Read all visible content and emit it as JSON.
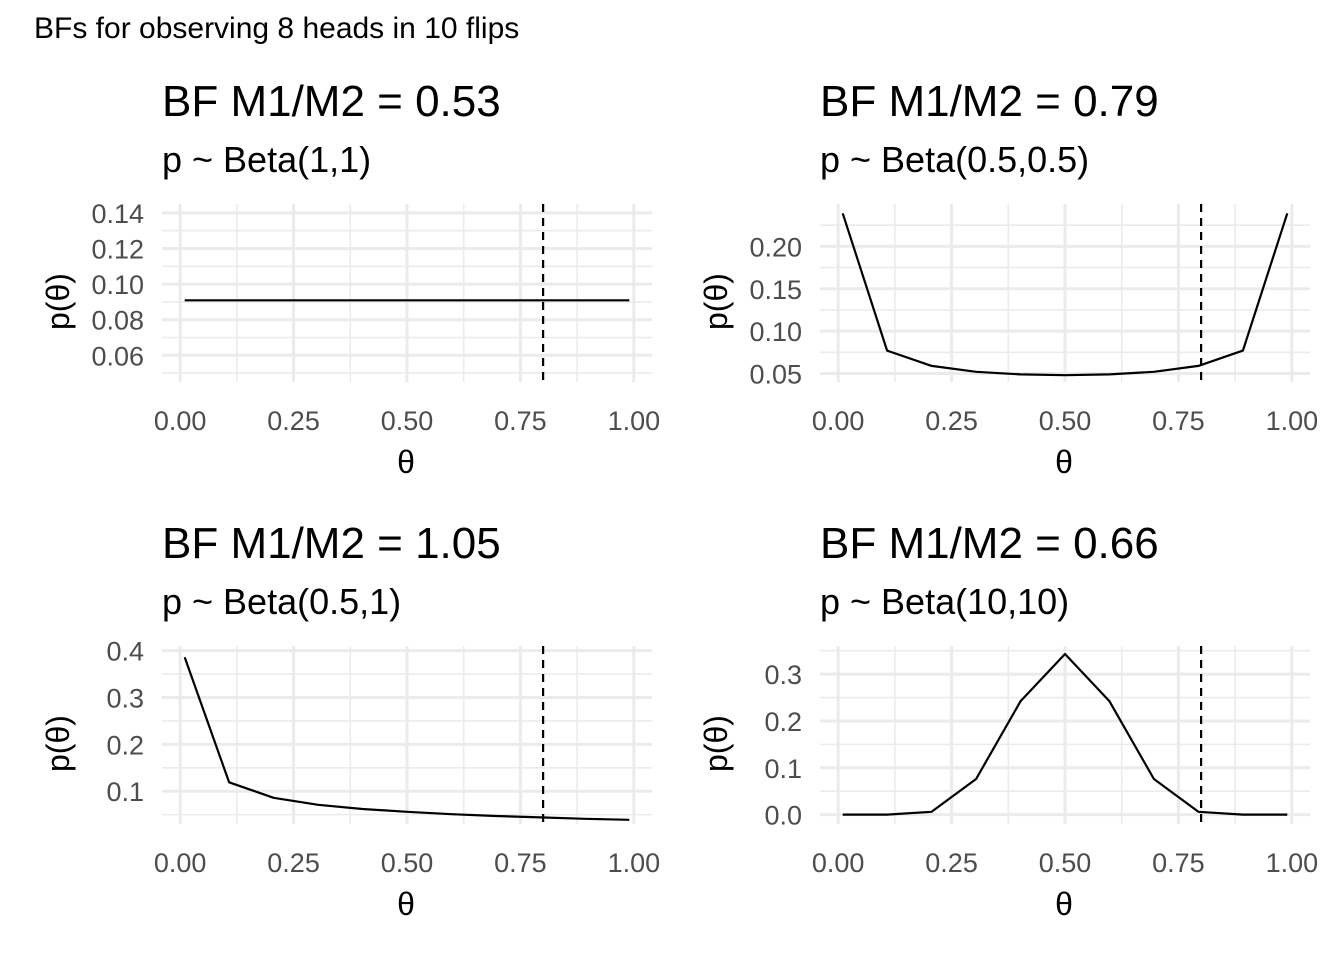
{
  "caption": "BFs for observing 8 heads in 10 flips",
  "chart_data": [
    {
      "type": "line",
      "title": "BF M1/M2 = 0.53",
      "subtitle": "p ~ Beta(1,1)",
      "xlabel": "θ",
      "ylabel": "p(θ)",
      "xlim": [
        -0.04,
        1.04
      ],
      "ylim": [
        0.045,
        0.145
      ],
      "xticks": [
        0.0,
        0.25,
        0.5,
        0.75,
        1.0
      ],
      "xtick_labels": [
        "0.00",
        "0.25",
        "0.50",
        "0.75",
        "1.00"
      ],
      "yticks": [
        0.06,
        0.08,
        0.1,
        0.12,
        0.14
      ],
      "ytick_labels": [
        "0.06",
        "0.08",
        "0.10",
        "0.12",
        "0.14"
      ],
      "grid": true,
      "vline": 0.8,
      "x": [
        0.01,
        0.108,
        0.206,
        0.304,
        0.402,
        0.5,
        0.598,
        0.696,
        0.794,
        0.892,
        0.99
      ],
      "y": [
        0.0909,
        0.0909,
        0.0909,
        0.0909,
        0.0909,
        0.0909,
        0.0909,
        0.0909,
        0.0909,
        0.0909,
        0.0909
      ]
    },
    {
      "type": "line",
      "title": "BF M1/M2 = 0.79",
      "subtitle": "p ~ Beta(0.5,0.5)",
      "xlabel": "θ",
      "ylabel": "p(θ)",
      "xlim": [
        -0.04,
        1.04
      ],
      "ylim": [
        0.04,
        0.25
      ],
      "xticks": [
        0.0,
        0.25,
        0.5,
        0.75,
        1.0
      ],
      "xtick_labels": [
        "0.00",
        "0.25",
        "0.50",
        "0.75",
        "1.00"
      ],
      "yticks": [
        0.05,
        0.1,
        0.15,
        0.2
      ],
      "ytick_labels": [
        "0.05",
        "0.10",
        "0.15",
        "0.20"
      ],
      "grid": true,
      "vline": 0.8,
      "x": [
        0.01,
        0.108,
        0.206,
        0.304,
        0.402,
        0.5,
        0.598,
        0.696,
        0.794,
        0.892,
        0.99
      ],
      "y": [
        0.239,
        0.077,
        0.059,
        0.052,
        0.049,
        0.048,
        0.049,
        0.052,
        0.059,
        0.077,
        0.239
      ]
    },
    {
      "type": "line",
      "title": "BF M1/M2 = 1.05",
      "subtitle": "p ~ Beta(0.5,1)",
      "xlabel": "θ",
      "ylabel": "p(θ)",
      "xlim": [
        -0.04,
        1.04
      ],
      "ylim": [
        0.03,
        0.41
      ],
      "xticks": [
        0.0,
        0.25,
        0.5,
        0.75,
        1.0
      ],
      "xtick_labels": [
        "0.00",
        "0.25",
        "0.50",
        "0.75",
        "1.00"
      ],
      "yticks": [
        0.1,
        0.2,
        0.3,
        0.4
      ],
      "ytick_labels": [
        "0.1",
        "0.2",
        "0.3",
        "0.4"
      ],
      "grid": true,
      "vline": 0.8,
      "x": [
        0.01,
        0.108,
        0.206,
        0.304,
        0.402,
        0.5,
        0.598,
        0.696,
        0.794,
        0.892,
        0.99
      ],
      "y": [
        0.386,
        0.119,
        0.086,
        0.071,
        0.062,
        0.056,
        0.051,
        0.047,
        0.044,
        0.041,
        0.039
      ]
    },
    {
      "type": "line",
      "title": "BF M1/M2 = 0.66",
      "subtitle": "p ~ Beta(10,10)",
      "xlabel": "θ",
      "ylabel": "p(θ)",
      "xlim": [
        -0.04,
        1.04
      ],
      "ylim": [
        -0.02,
        0.36
      ],
      "xticks": [
        0.0,
        0.25,
        0.5,
        0.75,
        1.0
      ],
      "xtick_labels": [
        "0.00",
        "0.25",
        "0.50",
        "0.75",
        "1.00"
      ],
      "yticks": [
        0.0,
        0.1,
        0.2,
        0.3
      ],
      "ytick_labels": [
        "0.0",
        "0.1",
        "0.2",
        "0.3"
      ],
      "grid": true,
      "vline": 0.8,
      "x": [
        0.01,
        0.108,
        0.206,
        0.304,
        0.402,
        0.5,
        0.598,
        0.696,
        0.794,
        0.892,
        0.99
      ],
      "y": [
        0.0,
        0.0,
        0.006,
        0.076,
        0.242,
        0.343,
        0.242,
        0.076,
        0.006,
        0.0,
        0.0
      ]
    }
  ]
}
